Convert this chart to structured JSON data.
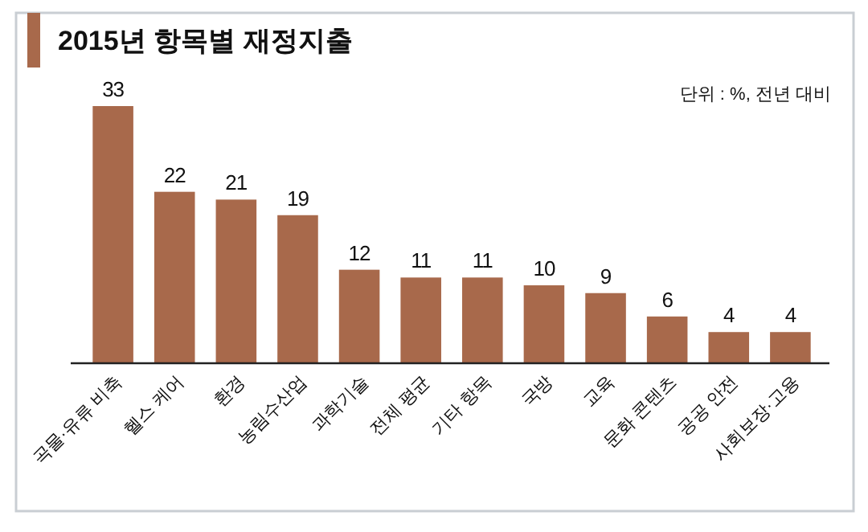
{
  "chart_data": {
    "type": "bar",
    "title": "2015년 항목별 재정지출",
    "subtitle": "단위 : %, 전년 대비",
    "categories": [
      "곡물·유류 비축",
      "헬스 케어",
      "환경",
      "농림수산업",
      "과학기술",
      "전체 평균",
      "기타 항목",
      "국방",
      "교육",
      "문화 콘텐츠",
      "공공 안전",
      "사회보장·고용"
    ],
    "values": [
      33,
      22,
      21,
      19,
      12,
      11,
      11,
      10,
      9,
      6,
      4,
      4
    ],
    "color": "#a8694b",
    "data_labels": true
  }
}
